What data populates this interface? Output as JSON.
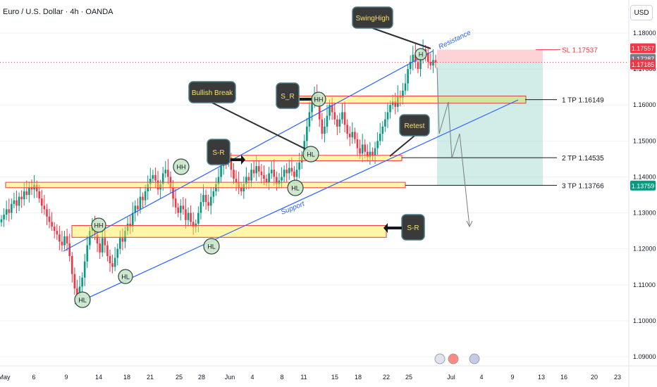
{
  "header": {
    "title": "Euro / U.S. Dollar · 4h · OANDA",
    "currency": "USD"
  },
  "chart_data": {
    "type": "candlestick",
    "symbol": "EURUSD",
    "timeframe": "4h",
    "yaxis": {
      "ticks": [
        1.09,
        1.1,
        1.11,
        1.12,
        1.13,
        1.14,
        1.15,
        1.16,
        1.17,
        1.18
      ],
      "tick_labels": [
        "1.09000",
        "1.10000",
        "1.11000",
        "1.12000",
        "1.13000",
        "1.14000",
        "1.15000",
        "1.16000",
        "1.17000",
        "1.18000"
      ],
      "range": [
        1.0875,
        1.1895
      ]
    },
    "xaxis": {
      "labels": [
        "May",
        "6",
        "9",
        "14",
        "18",
        "21",
        "25",
        "28",
        "Jun",
        "4",
        "8",
        "11",
        "15",
        "18",
        "22",
        "25",
        "Jul",
        "4",
        "9",
        "13",
        "16",
        "20",
        "23"
      ]
    },
    "price_tags": [
      {
        "value": 1.17557,
        "label": "1.17557",
        "color": "#f23645"
      },
      {
        "value": 1.17287,
        "label": "1.17287",
        "color": "#787b86"
      },
      {
        "value": 1.17185,
        "label": "1.17185",
        "color": "#f23645"
      },
      {
        "value": 1.13759,
        "label": "1.13759",
        "color": "#089981"
      }
    ],
    "levels": [
      {
        "label": "SL 1.17537",
        "value": 1.17537,
        "color": "#f23645"
      },
      {
        "label": "1 TP 1.16149",
        "value": 1.16149,
        "color": "#131722"
      },
      {
        "label": "2 TP 1.14535",
        "value": 1.14535,
        "color": "#131722"
      },
      {
        "label": "3 TP 1.13766",
        "value": 1.13766,
        "color": "#131722"
      }
    ],
    "zones": [
      {
        "from": 1.137,
        "to": 1.1385
      },
      {
        "from": 1.1232,
        "to": 1.1265
      },
      {
        "from": 1.1445,
        "to": 1.146
      },
      {
        "from": 1.1605,
        "to": 1.1625
      }
    ],
    "channel": {
      "resistance_label": "Resistance",
      "support_label": "Support"
    },
    "callouts": [
      {
        "text": "SwingHigh"
      },
      {
        "text": "Bullish Break"
      },
      {
        "text": "S_R"
      },
      {
        "text": "S-R"
      },
      {
        "text": "Retest"
      },
      {
        "text": "S-R"
      }
    ],
    "pivots": [
      "HL",
      "HH",
      "HL",
      "HL",
      "HH",
      "HL",
      "HL",
      "HH",
      "H"
    ],
    "close_series": [
      1.1282,
      1.1295,
      1.131,
      1.13,
      1.1325,
      1.1335,
      1.132,
      1.1345,
      1.1338,
      1.136,
      1.135,
      1.1372,
      1.1365,
      1.1378,
      1.136,
      1.134,
      1.132,
      1.131,
      1.129,
      1.1275,
      1.1262,
      1.125,
      1.124,
      1.122,
      1.121,
      1.1235,
      1.1215,
      1.118,
      1.113,
      1.109,
      1.107,
      1.1095,
      1.112,
      1.1165,
      1.121,
      1.125,
      1.1268,
      1.124,
      1.1215,
      1.119,
      1.123,
      1.121,
      1.118,
      1.116,
      1.115,
      1.1175,
      1.12,
      1.123,
      1.122,
      1.125,
      1.127,
      1.1262,
      1.13,
      1.132,
      1.131,
      1.1345,
      1.1335,
      1.136,
      1.138,
      1.1395,
      1.1405,
      1.139,
      1.1365,
      1.138,
      1.141,
      1.142,
      1.14,
      1.137,
      1.134,
      1.1315,
      1.13,
      1.132,
      1.131,
      1.128,
      1.13,
      1.1275,
      1.126,
      1.127,
      1.13,
      1.133,
      1.135,
      1.133,
      1.132,
      1.1345,
      1.136,
      1.138,
      1.14,
      1.143,
      1.1445,
      1.144,
      1.1455,
      1.142,
      1.1395,
      1.1385,
      1.137,
      1.136,
      1.138,
      1.14,
      1.139,
      1.142,
      1.141,
      1.143,
      1.1415,
      1.1405,
      1.1395,
      1.1385,
      1.141,
      1.142,
      1.14,
      1.138,
      1.139,
      1.14,
      1.142,
      1.141,
      1.1425,
      1.1415,
      1.14,
      1.142,
      1.144,
      1.146,
      1.15,
      1.154,
      1.158,
      1.161,
      1.163,
      1.161,
      1.156,
      1.152,
      1.154,
      1.157,
      1.16,
      1.158,
      1.156,
      1.154,
      1.156,
      1.158,
      1.1545,
      1.152,
      1.151,
      1.1525,
      1.1505,
      1.148,
      1.1465,
      1.149,
      1.147,
      1.1455,
      1.147,
      1.146,
      1.148,
      1.15,
      1.152,
      1.154,
      1.156,
      1.158,
      1.16,
      1.161,
      1.1595,
      1.1625,
      1.162,
      1.164,
      1.166,
      1.17,
      1.172,
      1.174,
      1.172,
      1.17,
      1.173,
      1.1755,
      1.1745,
      1.172,
      1.171,
      1.1725,
      1.1718
    ]
  }
}
